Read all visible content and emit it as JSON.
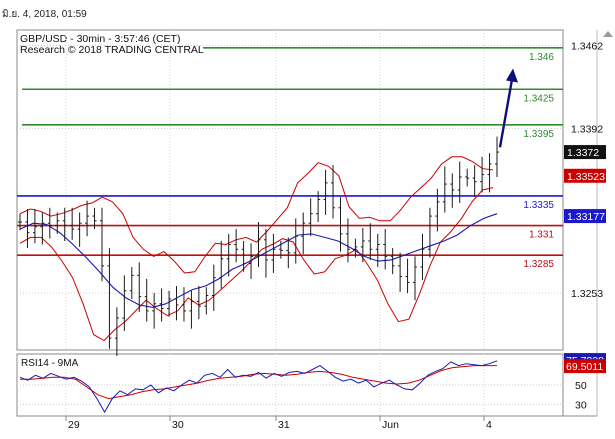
{
  "header": {
    "timestamp": "มิ.ย. 4, 2018, 01:59",
    "instrument": "GBP/USD - 30min - 3:57:46 (CET)",
    "source": "Research © 2018 TRADING CENTRAL"
  },
  "colors": {
    "price": "#1a1a1a",
    "bollinger": "#cc0000",
    "ma": "#1a1ab3",
    "resistance": "#2e8b2e",
    "pivot": "#1a1acc",
    "support": "#bb1111",
    "arrow": "#10107a",
    "rsi": "#1a1ab3",
    "rsi_ma": "#cc0000"
  },
  "chart_data": [
    {
      "type": "line",
      "title": "GBP/USD - 30min - 3:57:46 (CET)",
      "ylim": [
        1.3205,
        1.3475
      ],
      "y_ticks": [
        "1.3462",
        "1.3392",
        "1.3253"
      ],
      "x_ticks": [
        "29",
        "30",
        "31",
        "Jun",
        "4"
      ],
      "levels": [
        {
          "name": "resistance-3",
          "value": 1.346,
          "label": "1.346",
          "kind": "resistance"
        },
        {
          "name": "resistance-2",
          "value": 1.3425,
          "label": "1.3425",
          "kind": "resistance"
        },
        {
          "name": "resistance-1",
          "value": 1.3395,
          "label": "1.3395",
          "kind": "resistance"
        },
        {
          "name": "pivot",
          "value": 1.3335,
          "label": "1.3335",
          "kind": "pivot"
        },
        {
          "name": "support-1",
          "value": 1.331,
          "label": "1.331",
          "kind": "support"
        },
        {
          "name": "support-2",
          "value": 1.3285,
          "label": "1.3285",
          "kind": "support"
        }
      ],
      "price_badges": [
        {
          "value": 1.3372,
          "label": "1.3372",
          "kind": "price"
        },
        {
          "value": 1.3352,
          "label": "1.33523",
          "kind": "bollinger"
        },
        {
          "value": 1.3318,
          "label": "1.33177",
          "kind": "ma"
        }
      ],
      "series": [
        {
          "kind": "price",
          "values": [
            1.3313,
            1.3304,
            1.3309,
            1.3312,
            1.331,
            1.3314,
            1.331,
            1.3307,
            1.3312,
            1.3318,
            1.3314,
            1.3276,
            1.3215,
            1.3232,
            1.3255,
            1.3268,
            1.325,
            1.3238,
            1.3244,
            1.324,
            1.3248,
            1.3243,
            1.3238,
            1.3246,
            1.3242,
            1.3251,
            1.3266,
            1.3282,
            1.3294,
            1.329,
            1.3278,
            1.3284,
            1.3298,
            1.3281,
            1.329,
            1.3289,
            1.3287,
            1.3301,
            1.3312,
            1.332,
            1.3332,
            1.3346,
            1.3325,
            1.3303,
            1.329,
            1.3292,
            1.3297,
            1.329,
            1.3294,
            1.3284,
            1.3276,
            1.3267,
            1.3262,
            1.3275,
            1.329,
            1.3318,
            1.333,
            1.3345,
            1.334,
            1.3351,
            1.335,
            1.3347,
            1.3353,
            1.3362,
            1.3372
          ]
        },
        {
          "kind": "bollinger-upper",
          "values": [
            1.332,
            1.3324,
            1.3322,
            1.3318,
            1.332,
            1.3323,
            1.3327,
            1.3329,
            1.3334,
            1.333,
            1.332,
            1.33,
            1.329,
            1.3284,
            1.3288,
            1.328,
            1.327,
            1.3271,
            1.3284,
            1.3295,
            1.3294,
            1.3298,
            1.33,
            1.3296,
            1.3305,
            1.3315,
            1.3325,
            1.3346,
            1.3354,
            1.3363,
            1.336,
            1.3352,
            1.3326,
            1.3316,
            1.3317,
            1.3314,
            1.3314,
            1.3323,
            1.3334,
            1.3342,
            1.335,
            1.3362,
            1.3368,
            1.3368,
            1.3364,
            1.3358,
            1.3357
          ]
        },
        {
          "kind": "bollinger-lower",
          "values": [
            1.3295,
            1.33,
            1.33,
            1.3292,
            1.328,
            1.3266,
            1.3244,
            1.3218,
            1.3213,
            1.3222,
            1.3229,
            1.3238,
            1.3247,
            1.324,
            1.3234,
            1.3238,
            1.3249,
            1.3243,
            1.3247,
            1.3255,
            1.3263,
            1.3271,
            1.328,
            1.329,
            1.3294,
            1.3299,
            1.3296,
            1.3281,
            1.3269,
            1.3271,
            1.3282,
            1.3285,
            1.329,
            1.3278,
            1.3264,
            1.3244,
            1.3229,
            1.3231,
            1.3252,
            1.3276,
            1.3296,
            1.3305,
            1.3316,
            1.333,
            1.334,
            1.3342
          ]
        },
        {
          "kind": "moving-average",
          "values": [
            1.3307,
            1.3312,
            1.3311,
            1.3304,
            1.3294,
            1.3283,
            1.3271,
            1.3258,
            1.3249,
            1.3243,
            1.3241,
            1.3244,
            1.325,
            1.3256,
            1.3259,
            1.3265,
            1.3273,
            1.3278,
            1.3284,
            1.329,
            1.3296,
            1.3302,
            1.3303,
            1.33,
            1.3297,
            1.3291,
            1.3284,
            1.328,
            1.3281,
            1.3285,
            1.3289,
            1.3293,
            1.3297,
            1.3302,
            1.331,
            1.3316,
            1.332
          ]
        },
        {
          "kind": "forecast-arrow",
          "values": [
            1.3376,
            1.344
          ]
        }
      ]
    },
    {
      "type": "line",
      "title": "RSI14 - 9MA",
      "ylim": [
        18,
        82
      ],
      "y_ticks": [
        "50",
        "30"
      ],
      "price_badges": [
        {
          "value": 75.73,
          "label": "75.7338",
          "kind": "rsi"
        },
        {
          "value": 69.5,
          "label": "69.5011",
          "kind": "rsi_ma"
        }
      ],
      "series": [
        {
          "kind": "rsi",
          "values": [
            58,
            55,
            60,
            57,
            62,
            59,
            56,
            58,
            54,
            48,
            36,
            22,
            36,
            44,
            40,
            46,
            45,
            50,
            42,
            47,
            44,
            50,
            55,
            52,
            60,
            62,
            58,
            66,
            58,
            60,
            59,
            63,
            57,
            62,
            59,
            63,
            64,
            62,
            66,
            70,
            64,
            58,
            54,
            56,
            52,
            55,
            48,
            52,
            55,
            50,
            46,
            45,
            52,
            60,
            64,
            67,
            74,
            70,
            72,
            71,
            70,
            72,
            75
          ]
        },
        {
          "kind": "rsi-ma",
          "values": [
            56,
            56,
            57,
            58,
            58,
            56,
            48,
            40,
            36,
            38,
            40,
            43,
            45,
            46,
            48,
            50,
            52,
            55,
            57,
            58,
            59,
            61,
            62,
            61,
            60,
            61,
            63,
            64,
            63,
            61,
            58,
            56,
            54,
            52,
            51,
            52,
            55,
            60,
            65,
            68,
            69,
            70,
            70,
            70
          ]
        }
      ]
    }
  ]
}
